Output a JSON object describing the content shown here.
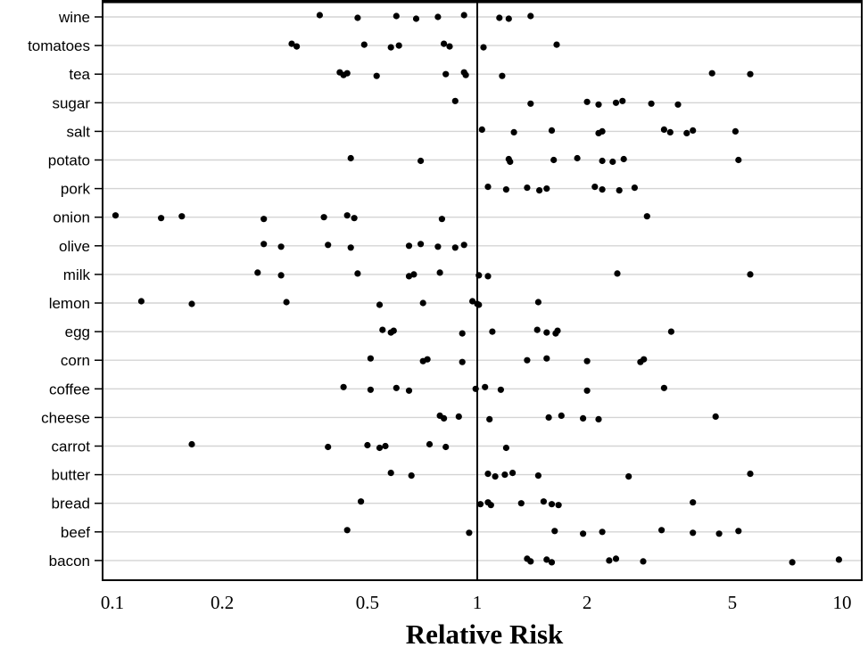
{
  "chart_data": {
    "type": "scatter",
    "xlabel": "Relative Risk",
    "x_scale": "log",
    "xlim": [
      0.1,
      10
    ],
    "x_ticks": [
      0.1,
      0.2,
      0.5,
      1,
      2,
      5,
      10
    ],
    "x_tick_labels": [
      "0.1",
      "0.2",
      "0.5",
      "1",
      "2",
      "5",
      "10"
    ],
    "reference_line": 1,
    "grid": "horizontal",
    "categories": [
      "wine",
      "tomatoes",
      "tea",
      "sugar",
      "salt",
      "potato",
      "pork",
      "onion",
      "olive",
      "milk",
      "lemon",
      "egg",
      "corn",
      "coffee",
      "cheese",
      "carrot",
      "butter",
      "bread",
      "beef",
      "bacon"
    ],
    "values": [
      [
        0.37,
        0.47,
        0.6,
        0.68,
        0.78,
        0.92,
        1.15,
        1.22,
        1.4
      ],
      [
        0.31,
        0.32,
        0.49,
        0.58,
        0.61,
        0.81,
        0.84,
        1.04,
        1.65
      ],
      [
        0.42,
        0.43,
        0.44,
        0.53,
        0.82,
        0.92,
        0.93,
        1.17,
        4.4,
        5.6
      ],
      [
        0.87,
        1.4,
        2.0,
        2.15,
        2.4,
        2.5,
        3.0,
        3.55
      ],
      [
        1.03,
        1.26,
        1.6,
        2.15,
        2.2,
        3.25,
        3.38,
        3.75,
        3.9,
        5.1
      ],
      [
        0.45,
        0.7,
        1.22,
        1.23,
        1.62,
        1.88,
        2.2,
        2.35,
        2.52,
        5.2
      ],
      [
        1.07,
        1.2,
        1.37,
        1.48,
        1.55,
        2.1,
        2.2,
        2.45,
        2.7
      ],
      [
        0.102,
        0.136,
        0.155,
        0.26,
        0.38,
        0.44,
        0.46,
        0.8,
        2.92
      ],
      [
        0.26,
        0.29,
        0.39,
        0.45,
        0.65,
        0.7,
        0.78,
        0.87,
        0.92
      ],
      [
        0.25,
        0.29,
        0.47,
        0.65,
        0.67,
        0.79,
        1.01,
        1.07,
        2.42,
        5.6
      ],
      [
        0.12,
        0.165,
        0.3,
        0.54,
        0.71,
        0.97,
        1.0,
        1.01,
        1.47
      ],
      [
        0.55,
        0.58,
        0.59,
        0.91,
        1.1,
        1.46,
        1.55,
        1.64,
        1.66,
        3.4
      ],
      [
        0.51,
        0.71,
        0.73,
        0.91,
        1.37,
        1.55,
        2.0,
        2.8,
        2.86
      ],
      [
        0.43,
        0.51,
        0.6,
        0.65,
        0.99,
        1.05,
        1.16,
        2.0,
        3.25
      ],
      [
        0.79,
        0.81,
        0.89,
        1.08,
        1.57,
        1.7,
        1.95,
        2.15,
        4.5
      ],
      [
        0.165,
        0.39,
        0.5,
        0.54,
        0.56,
        0.74,
        0.82,
        1.2
      ],
      [
        0.58,
        0.66,
        1.07,
        1.12,
        1.19,
        1.25,
        1.47,
        2.6,
        5.6
      ],
      [
        0.48,
        1.02,
        1.07,
        1.09,
        1.32,
        1.52,
        1.6,
        1.67,
        3.9
      ],
      [
        0.44,
        0.95,
        1.63,
        1.95,
        2.2,
        3.2,
        3.9,
        4.6,
        5.2
      ],
      [
        1.37,
        1.4,
        1.55,
        1.6,
        2.3,
        2.4,
        2.85,
        7.3,
        9.8
      ]
    ]
  }
}
